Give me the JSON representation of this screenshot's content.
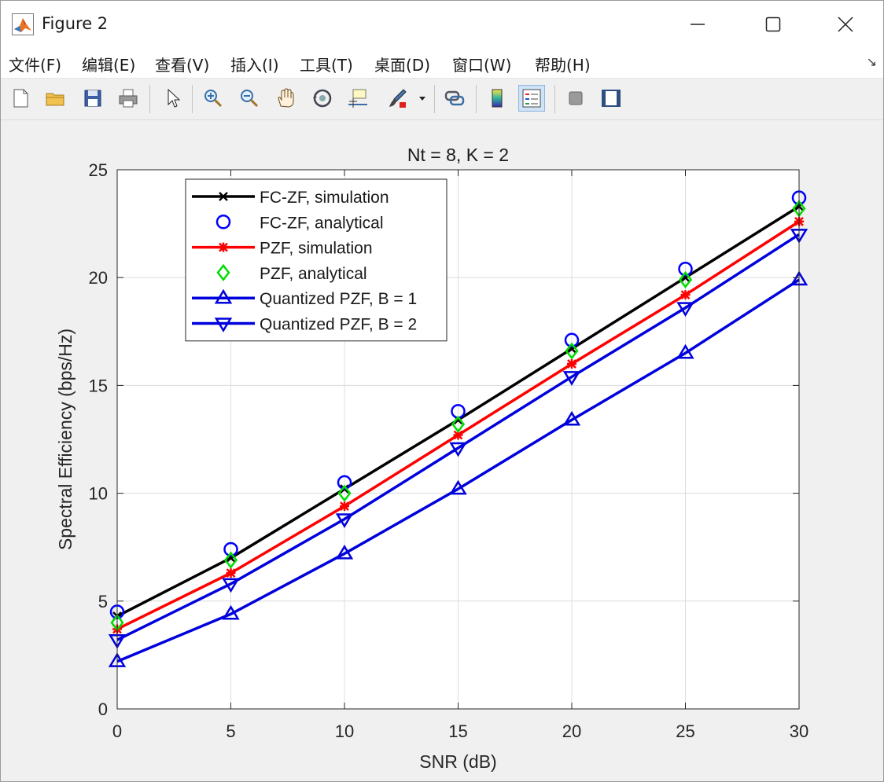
{
  "window": {
    "title": "Figure 2",
    "controls": [
      "minimize",
      "maximize",
      "close"
    ]
  },
  "menu": {
    "items": [
      "文件(F)",
      "编辑(E)",
      "查看(V)",
      "插入(I)",
      "工具(T)",
      "桌面(D)",
      "窗口(W)",
      "帮助(H)"
    ],
    "overflow_arrow": "↘"
  },
  "toolbar": {
    "icons": [
      "new-file-icon",
      "open-folder-icon",
      "save-icon",
      "print-icon",
      "pointer-icon",
      "zoom-in-icon",
      "zoom-out-icon",
      "pan-hand-icon",
      "rotate-3d-icon",
      "data-cursor-icon",
      "brush-icon",
      "brush-dropdown-icon",
      "link-plot-icon",
      "colorbar-icon",
      "legend-icon",
      "hide-plot-tools-icon",
      "show-plot-tools-icon"
    ],
    "active": "legend-icon"
  },
  "chart_data": {
    "type": "line",
    "title": "Nt = 8, K = 2",
    "xlabel": "SNR (dB)",
    "ylabel": "Spectral Efficiency (bps/Hz)",
    "xlim": [
      0,
      30
    ],
    "ylim": [
      0,
      25
    ],
    "xticks": [
      0,
      5,
      10,
      15,
      20,
      25,
      30
    ],
    "yticks": [
      0,
      5,
      10,
      15,
      20,
      25
    ],
    "grid": true,
    "legend_position": "top-left",
    "x": [
      0,
      5,
      10,
      15,
      20,
      25,
      30
    ],
    "series": [
      {
        "name": "FC-ZF, simulation",
        "color": "#000000",
        "line": true,
        "marker": "x",
        "values": [
          4.3,
          7.0,
          10.2,
          13.4,
          16.7,
          20.0,
          23.3
        ]
      },
      {
        "name": "FC-ZF, analytical",
        "color": "#0000ff",
        "line": false,
        "marker": "circle",
        "values": [
          4.5,
          7.4,
          10.5,
          13.8,
          17.1,
          20.4,
          23.7
        ]
      },
      {
        "name": "PZF, simulation",
        "color": "#ff0000",
        "line": true,
        "marker": "asterisk",
        "values": [
          3.7,
          6.3,
          9.4,
          12.7,
          16.0,
          19.2,
          22.6
        ]
      },
      {
        "name": "PZF, analytical",
        "color": "#00dd00",
        "line": false,
        "marker": "diamond",
        "values": [
          4.0,
          6.9,
          10.0,
          13.2,
          16.6,
          19.9,
          23.2
        ]
      },
      {
        "name": "Quantized PZF, B = 1",
        "color": "#0000dd",
        "line": true,
        "marker": "triangle-up",
        "values": [
          2.2,
          4.4,
          7.2,
          10.2,
          13.4,
          16.5,
          19.9
        ]
      },
      {
        "name": "Quantized PZF, B = 2",
        "color": "#0000dd",
        "line": true,
        "marker": "triangle-down",
        "values": [
          3.2,
          5.8,
          8.8,
          12.1,
          15.4,
          18.6,
          22.0
        ]
      }
    ]
  }
}
